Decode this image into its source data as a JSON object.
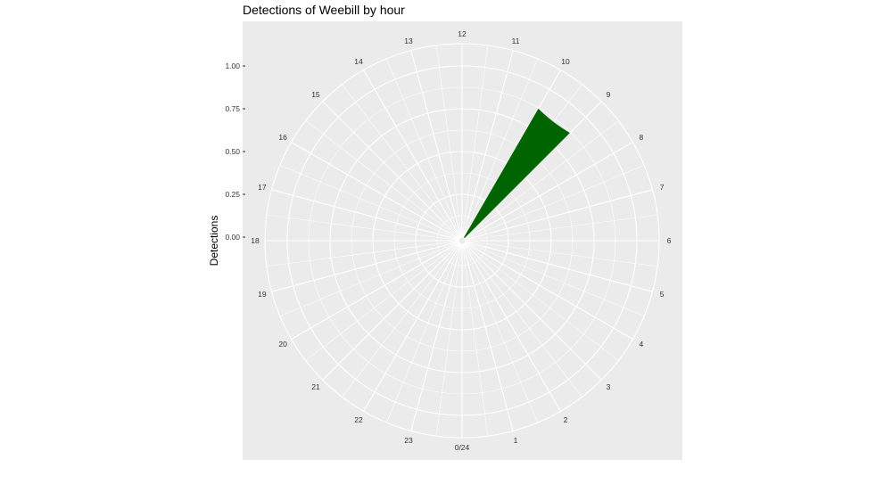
{
  "chart_data": {
    "type": "bar",
    "coord": "polar",
    "title": "Detections of Weebill by hour",
    "xlabel": "",
    "ylabel": "Detections",
    "categories": [
      "0/24",
      "1",
      "2",
      "3",
      "4",
      "5",
      "6",
      "7",
      "8",
      "9",
      "10",
      "11",
      "12",
      "13",
      "14",
      "15",
      "16",
      "17",
      "18",
      "19",
      "20",
      "21",
      "22",
      "23"
    ],
    "bars": [
      {
        "hour": 9.5,
        "value": 0.87
      }
    ],
    "ylim": [
      0,
      1
    ],
    "yticks": [
      "0.00",
      "0.25",
      "0.50",
      "0.75",
      "1.00"
    ],
    "grid": true,
    "legend": "none",
    "colors": {
      "panel_background": "#ebebeb",
      "grid": "#ffffff",
      "bar": "#006400"
    }
  }
}
